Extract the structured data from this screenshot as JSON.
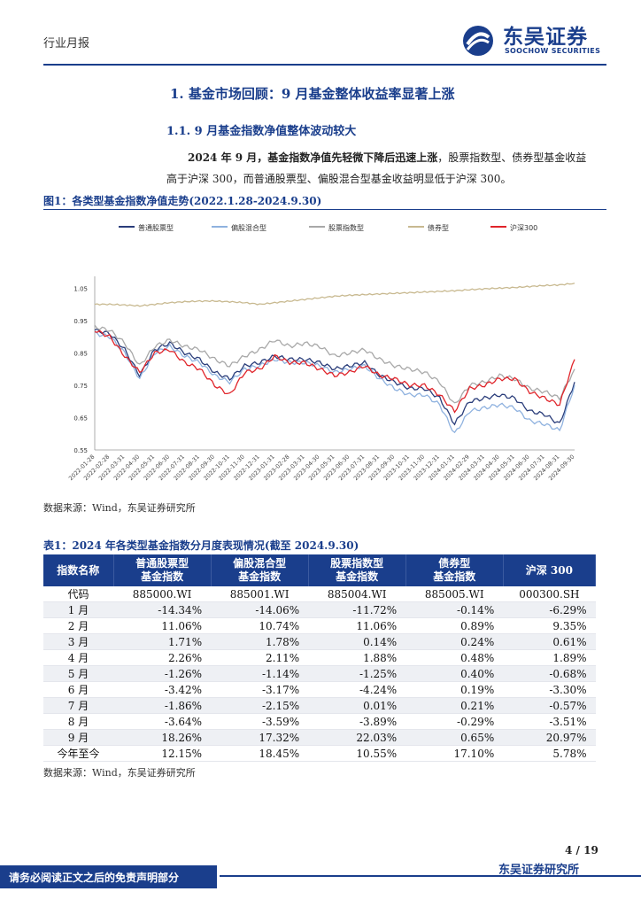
{
  "header": {
    "category": "行业月报",
    "brand_cn": "东吴证券",
    "brand_en": "SOOCHOW SECURITIES"
  },
  "section": {
    "h1": "1.  基金市场回顾：9 月基金整体收益率显著上涨",
    "h2": "1.1.   9 月基金指数净值整体波动较大"
  },
  "paragraph": {
    "lead": "2024 年 9 月，基金指数净值先轻微下降后迅速上涨",
    "rest": "，股票指数型、债券型基金收益",
    "line2": "高于沪深 300，而普通股票型、偏股混合型基金收益明显低于沪深 300。"
  },
  "figure": {
    "title": "图1：各类型基金指数净值走势(2022.1.28-2024.9.30)",
    "source": "数据来源：Wind，东吴证券研究所"
  },
  "chart_data": {
    "type": "line",
    "title": "",
    "xlabel": "",
    "ylabel": "",
    "ylim": [
      0.55,
      1.07
    ],
    "yticks": [
      "1.05",
      "0.95",
      "0.85",
      "0.75",
      "0.65",
      "0.55"
    ],
    "x": [
      "2022-01-28",
      "2022-02-28",
      "2022-03-31",
      "2022-04-30",
      "2022-05-31",
      "2022-06-30",
      "2022-07-31",
      "2022-08-31",
      "2022-09-30",
      "2022-10-31",
      "2022-11-30",
      "2022-12-31",
      "2023-01-31",
      "2023-02-28",
      "2023-03-31",
      "2023-04-30",
      "2023-05-31",
      "2023-06-30",
      "2023-07-31",
      "2023-08-31",
      "2023-09-30",
      "2023-10-31",
      "2023-11-30",
      "2023-12-31",
      "2024-01-31",
      "2024-02-29",
      "2024-03-31",
      "2024-04-30",
      "2024-05-31",
      "2024-06-30",
      "2024-07-31",
      "2024-08-31",
      "2024-09-30"
    ],
    "legend_position": "top",
    "series": [
      {
        "name": "普通股票型",
        "color": "#2a3d7a",
        "values": [
          0.92,
          0.91,
          0.86,
          0.78,
          0.86,
          0.88,
          0.85,
          0.83,
          0.79,
          0.77,
          0.81,
          0.82,
          0.84,
          0.83,
          0.83,
          0.82,
          0.8,
          0.81,
          0.82,
          0.78,
          0.76,
          0.74,
          0.74,
          0.71,
          0.63,
          0.7,
          0.71,
          0.72,
          0.71,
          0.67,
          0.66,
          0.63,
          0.76
        ]
      },
      {
        "name": "偏股混合型",
        "color": "#8fb2df",
        "values": [
          0.91,
          0.9,
          0.85,
          0.77,
          0.85,
          0.87,
          0.84,
          0.82,
          0.78,
          0.76,
          0.8,
          0.81,
          0.83,
          0.82,
          0.82,
          0.81,
          0.79,
          0.8,
          0.81,
          0.77,
          0.74,
          0.72,
          0.72,
          0.69,
          0.6,
          0.67,
          0.68,
          0.69,
          0.68,
          0.64,
          0.63,
          0.61,
          0.75
        ]
      },
      {
        "name": "股票指数型",
        "color": "#a8a8a8",
        "values": [
          0.93,
          0.92,
          0.88,
          0.81,
          0.87,
          0.89,
          0.87,
          0.86,
          0.83,
          0.81,
          0.84,
          0.86,
          0.89,
          0.87,
          0.88,
          0.87,
          0.84,
          0.85,
          0.86,
          0.83,
          0.81,
          0.8,
          0.79,
          0.76,
          0.69,
          0.75,
          0.76,
          0.78,
          0.77,
          0.74,
          0.73,
          0.71,
          0.8
        ]
      },
      {
        "name": "债券型",
        "color": "#c8b990",
        "values": [
          1.0,
          1.0,
          0.998,
          0.995,
          1.0,
          1.005,
          1.008,
          1.01,
          1.01,
          1.008,
          1.005,
          1.0,
          1.005,
          1.01,
          1.015,
          1.02,
          1.025,
          1.028,
          1.03,
          1.032,
          1.034,
          1.036,
          1.038,
          1.04,
          1.042,
          1.045,
          1.048,
          1.05,
          1.052,
          1.055,
          1.058,
          1.06,
          1.065
        ]
      },
      {
        "name": "沪深300",
        "color": "#e0242a",
        "values": [
          0.92,
          0.9,
          0.84,
          0.79,
          0.85,
          0.86,
          0.82,
          0.8,
          0.75,
          0.72,
          0.79,
          0.8,
          0.84,
          0.82,
          0.82,
          0.8,
          0.78,
          0.79,
          0.81,
          0.78,
          0.77,
          0.75,
          0.75,
          0.72,
          0.67,
          0.74,
          0.75,
          0.77,
          0.77,
          0.73,
          0.71,
          0.69,
          0.83
        ]
      }
    ]
  },
  "table": {
    "title": "表1：2024 年各类型基金指数分月度表现情况(截至 2024.9.30)",
    "headers": [
      {
        "line1": "指数名称",
        "line2": ""
      },
      {
        "line1": "普通股票型",
        "line2": "基金指数"
      },
      {
        "line1": "偏股混合型",
        "line2": "基金指数"
      },
      {
        "line1": "股票指数型",
        "line2": "基金指数"
      },
      {
        "line1": "债券型",
        "line2": "基金指数"
      },
      {
        "line1": "沪深 300",
        "line2": ""
      }
    ],
    "rows": [
      [
        "代码",
        "885000.WI",
        "885001.WI",
        "885004.WI",
        "885005.WI",
        "000300.SH"
      ],
      [
        "1 月",
        "-14.34%",
        "-14.06%",
        "-11.72%",
        "-0.14%",
        "-6.29%"
      ],
      [
        "2 月",
        "11.06%",
        "10.74%",
        "11.06%",
        "0.89%",
        "9.35%"
      ],
      [
        "3 月",
        "1.71%",
        "1.78%",
        "0.14%",
        "0.24%",
        "0.61%"
      ],
      [
        "4 月",
        "2.26%",
        "2.11%",
        "1.88%",
        "0.48%",
        "1.89%"
      ],
      [
        "5 月",
        "-1.26%",
        "-1.14%",
        "-1.25%",
        "0.40%",
        "-0.68%"
      ],
      [
        "6 月",
        "-3.42%",
        "-3.17%",
        "-4.24%",
        "0.19%",
        "-3.30%"
      ],
      [
        "7 月",
        "-1.86%",
        "-2.15%",
        "0.01%",
        "0.21%",
        "-0.57%"
      ],
      [
        "8 月",
        "-3.64%",
        "-3.59%",
        "-3.89%",
        "-0.29%",
        "-3.51%"
      ],
      [
        "9 月",
        "18.26%",
        "17.32%",
        "22.03%",
        "0.65%",
        "20.97%"
      ],
      [
        "今年至今",
        "12.15%",
        "18.45%",
        "10.55%",
        "17.10%",
        "5.78%"
      ]
    ],
    "source": "数据来源：Wind，东吴证券研究所"
  },
  "footer": {
    "page": "4  /  19",
    "disclaimer": "请务必阅读正文之后的免责声明部分",
    "org": "东吴证券研究所"
  }
}
